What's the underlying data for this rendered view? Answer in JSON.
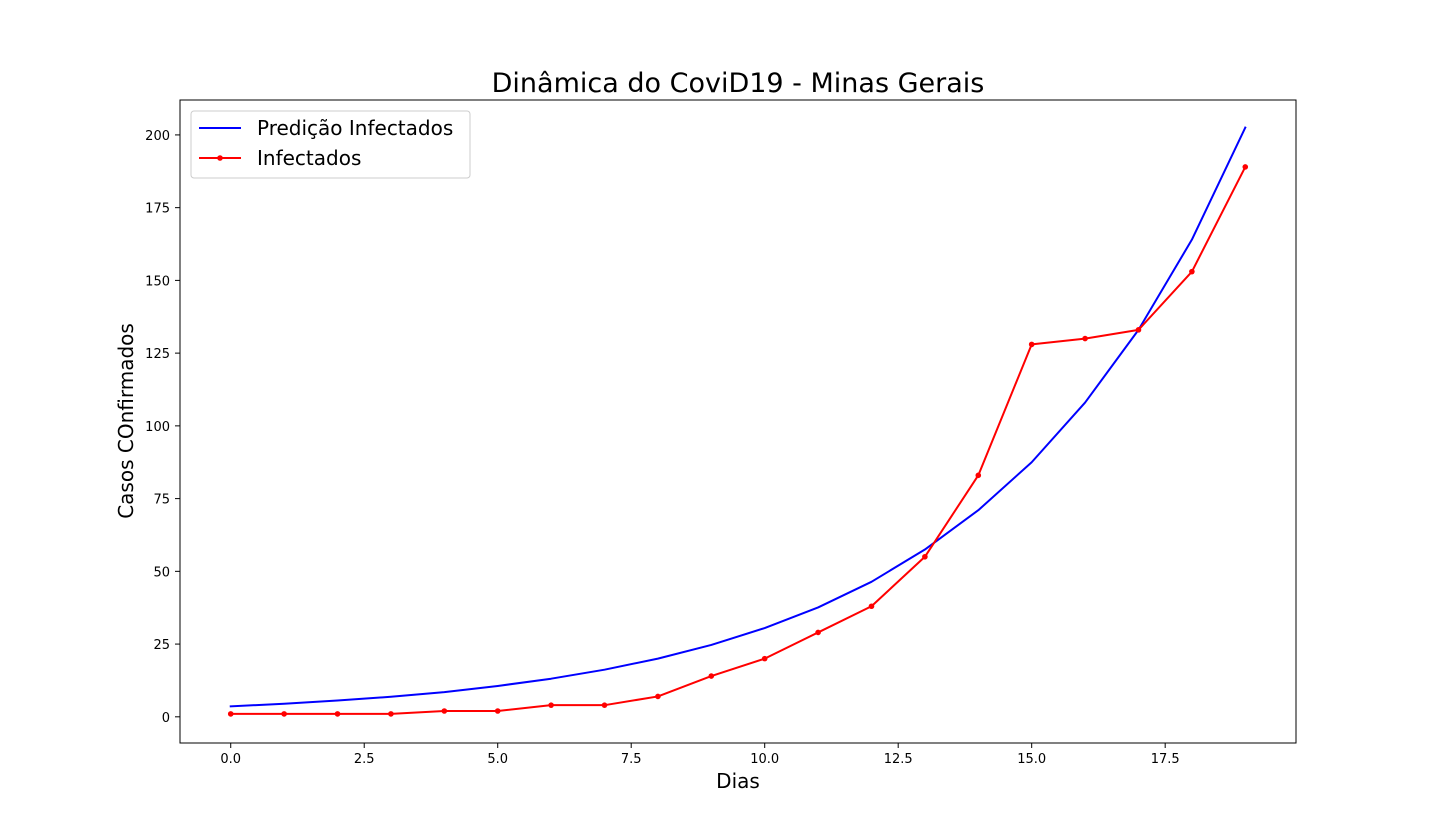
{
  "chart_data": {
    "type": "line",
    "title": "Dinâmica do CoviD19 - Minas Gerais",
    "xlabel": "Dias",
    "ylabel": "Casos COnfirmados",
    "xlim": [
      -0.95,
      19.95
    ],
    "ylim": [
      -9,
      212
    ],
    "x_ticks": [
      0,
      2.5,
      5,
      7.5,
      10,
      12.5,
      15,
      17.5
    ],
    "x_tick_labels": [
      "0.0",
      "2.5",
      "5.0",
      "7.5",
      "10.0",
      "12.5",
      "15.0",
      "17.5"
    ],
    "y_ticks": [
      0,
      25,
      50,
      75,
      100,
      125,
      150,
      175,
      200
    ],
    "y_tick_labels": [
      "0",
      "25",
      "50",
      "75",
      "100",
      "125",
      "150",
      "175",
      "200"
    ],
    "grid": false,
    "legend_position": "upper-left",
    "x": [
      0,
      1,
      2,
      3,
      4,
      5,
      6,
      7,
      8,
      9,
      10,
      11,
      12,
      13,
      14,
      15,
      16,
      17,
      18,
      19
    ],
    "series": [
      {
        "name": "Predição Infectados",
        "color": "#0000ff",
        "marker": false,
        "values": [
          3.6,
          4.5,
          5.6,
          6.9,
          8.5,
          10.6,
          13.1,
          16.2,
          20.0,
          24.7,
          30.5,
          37.6,
          46.4,
          57.5,
          71.0,
          87.5,
          108.0,
          133.0,
          164.0,
          202.5
        ]
      },
      {
        "name": "Infectados",
        "color": "#ff0000",
        "marker": true,
        "values": [
          1,
          1,
          1,
          1,
          2,
          2,
          4,
          4,
          7,
          14,
          20,
          29,
          38,
          55,
          83,
          128,
          130,
          133,
          153,
          189
        ]
      }
    ]
  }
}
